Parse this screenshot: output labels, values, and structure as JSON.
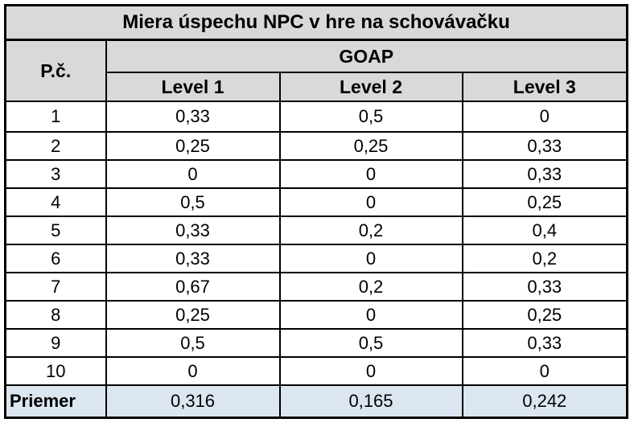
{
  "title": "Miera úspechu NPC v hre na schovávačku",
  "header": {
    "pc_label": "P.č.",
    "group_label": "GOAP",
    "levels": [
      "Level 1",
      "Level 2",
      "Level 3"
    ]
  },
  "rows": [
    {
      "n": "1",
      "v": [
        "0,33",
        "0,5",
        "0"
      ]
    },
    {
      "n": "2",
      "v": [
        "0,25",
        "0,25",
        "0,33"
      ]
    },
    {
      "n": "3",
      "v": [
        "0",
        "0",
        "0,33"
      ]
    },
    {
      "n": "4",
      "v": [
        "0,5",
        "0",
        "0,25"
      ]
    },
    {
      "n": "5",
      "v": [
        "0,33",
        "0,2",
        "0,4"
      ]
    },
    {
      "n": "6",
      "v": [
        "0,33",
        "0",
        "0,2"
      ]
    },
    {
      "n": "7",
      "v": [
        "0,67",
        "0,2",
        "0,33"
      ]
    },
    {
      "n": "8",
      "v": [
        "0,25",
        "0",
        "0,25"
      ]
    },
    {
      "n": "9",
      "v": [
        "0,5",
        "0,5",
        "0,33"
      ]
    },
    {
      "n": "10",
      "v": [
        "0",
        "0",
        "0"
      ]
    }
  ],
  "average": {
    "label": "Priemer",
    "v": [
      "0,316",
      "0,165",
      "0,242"
    ]
  },
  "colors": {
    "header_bg": "#d9d9d9",
    "average_bg": "#dce6f1"
  }
}
